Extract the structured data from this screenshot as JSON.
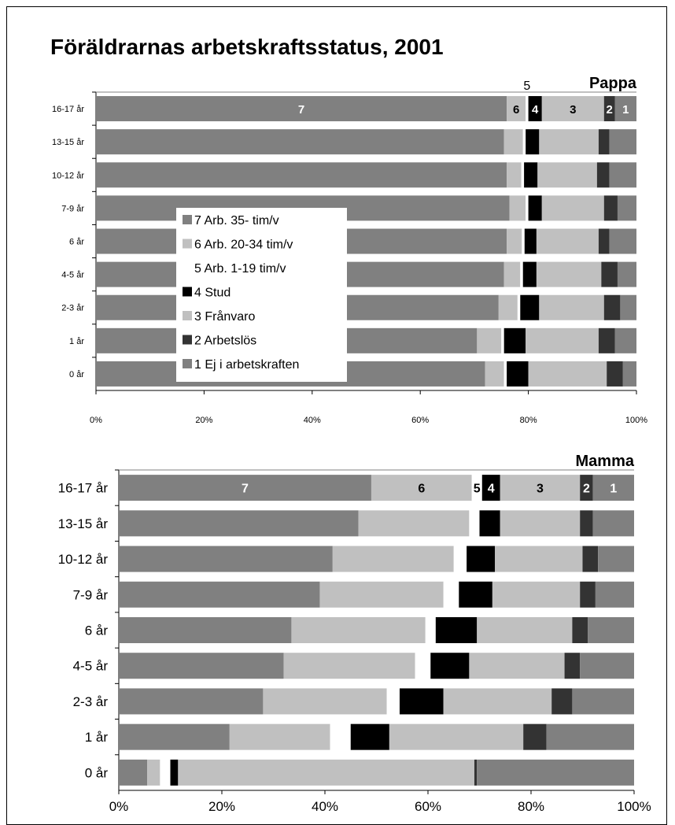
{
  "title": "Föräldrarnas arbetskraftsstatus, 2001",
  "colors": {
    "7": "#808080",
    "6": "#c0c0c0",
    "5": "#ffffff",
    "4": "#000000",
    "3": "#c0c0c0",
    "2": "#333333",
    "1": "#808080"
  },
  "legend": [
    {
      "code": "7",
      "label": "7 Arb. 35- tim/v"
    },
    {
      "code": "6",
      "label": "6 Arb. 20-34 tim/v"
    },
    {
      "code": "5",
      "label": "5 Arb. 1-19 tim/v"
    },
    {
      "code": "4",
      "label": "4 Stud"
    },
    {
      "code": "3",
      "label": "3 Frånvaro"
    },
    {
      "code": "2",
      "label": "2 Arbetslös"
    },
    {
      "code": "1",
      "label": "1 Ej i arbetskraften"
    }
  ],
  "chart_data": [
    {
      "type": "bar",
      "stacked": "100%",
      "orientation": "horizontal",
      "panel_label": "Pappa",
      "categories": [
        "16-17 år",
        "13-15 år",
        "10-12 år",
        "7-9 år",
        "6 år",
        "4-5 år",
        "2-3 år",
        "1 år",
        "0 år"
      ],
      "x_ticks": [
        "0%",
        "20%",
        "40%",
        "60%",
        "80%",
        "100%"
      ],
      "xlim": [
        0,
        100
      ],
      "series": [
        {
          "name": "7 Arb. 35- tim/v",
          "code": "7",
          "values": [
            76.0,
            75.5,
            76.0,
            76.5,
            76.0,
            75.5,
            74.5,
            70.5,
            72.0
          ]
        },
        {
          "name": "6 Arb. 20-34 tim/v",
          "code": "6",
          "values": [
            3.5,
            3.5,
            2.7,
            3.0,
            2.8,
            3.0,
            3.5,
            4.5,
            3.5
          ]
        },
        {
          "name": "5 Arb. 1-19 tim/v",
          "code": "5",
          "values": [
            0.5,
            0.5,
            0.5,
            0.5,
            0.5,
            0.5,
            0.5,
            0.5,
            0.5
          ]
        },
        {
          "name": "4 Stud",
          "code": "4",
          "values": [
            2.5,
            2.5,
            2.5,
            2.5,
            2.2,
            2.5,
            3.5,
            4.0,
            4.0
          ]
        },
        {
          "name": "3 Frånvaro",
          "code": "3",
          "values": [
            11.5,
            11.0,
            11.0,
            11.5,
            11.5,
            12.0,
            12.0,
            13.5,
            14.5
          ]
        },
        {
          "name": "2 Arbetslös",
          "code": "2",
          "values": [
            2.0,
            2.0,
            2.3,
            2.5,
            2.0,
            3.0,
            3.0,
            3.0,
            3.0
          ]
        },
        {
          "name": "1 Ej i arbetskraften",
          "code": "1",
          "values": [
            4.0,
            5.0,
            5.0,
            3.5,
            5.0,
            3.5,
            3.0,
            4.0,
            2.5
          ]
        }
      ],
      "segment_labels_top_row": [
        "7",
        "6",
        "5",
        "4",
        "3",
        "2",
        "1"
      ]
    },
    {
      "type": "bar",
      "stacked": "100%",
      "orientation": "horizontal",
      "panel_label": "Mamma",
      "categories": [
        "16-17 år",
        "13-15 år",
        "10-12 år",
        "7-9 år",
        "6 år",
        "4-5 år",
        "2-3 år",
        "1 år",
        "0 år"
      ],
      "x_ticks": [
        "0%",
        "20%",
        "40%",
        "60%",
        "80%",
        "100%"
      ],
      "xlim": [
        0,
        100
      ],
      "series": [
        {
          "name": "7 Arb. 35- tim/v",
          "code": "7",
          "values": [
            49.0,
            46.5,
            41.5,
            39.0,
            33.5,
            32.0,
            28.0,
            21.5,
            5.5
          ]
        },
        {
          "name": "6 Arb. 20-34 tim/v",
          "code": "6",
          "values": [
            19.5,
            21.5,
            23.5,
            24.0,
            26.0,
            25.5,
            24.0,
            19.5,
            2.5
          ]
        },
        {
          "name": "5 Arb. 1-19 tim/v",
          "code": "5",
          "values": [
            2.0,
            2.0,
            2.5,
            3.0,
            2.0,
            3.0,
            2.5,
            4.0,
            2.0
          ]
        },
        {
          "name": "4 Stud",
          "code": "4",
          "values": [
            3.5,
            4.0,
            5.5,
            6.5,
            8.0,
            7.5,
            8.5,
            7.5,
            1.5
          ]
        },
        {
          "name": "3 Frånvaro",
          "code": "3",
          "values": [
            15.5,
            15.5,
            17.0,
            17.0,
            18.5,
            18.5,
            21.0,
            26.0,
            57.5
          ]
        },
        {
          "name": "2 Arbetslös",
          "code": "2",
          "values": [
            2.5,
            2.5,
            3.0,
            3.0,
            3.0,
            3.0,
            4.0,
            4.5,
            0.5
          ]
        },
        {
          "name": "1 Ej i arbetskraften",
          "code": "1",
          "values": [
            8.0,
            8.0,
            7.0,
            7.5,
            9.0,
            10.5,
            12.0,
            17.0,
            30.5
          ]
        }
      ],
      "segment_labels_top_row": [
        "7",
        "6",
        "5",
        "4",
        "3",
        "2",
        "1"
      ]
    }
  ]
}
